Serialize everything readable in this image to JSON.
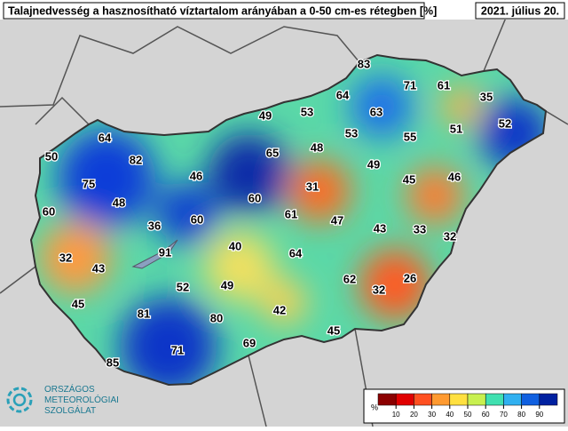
{
  "header": {
    "title": "Talajnedvesség a hasznosítható víztartalom arányában a 0-50 cm-es rétegben [%]",
    "date": "2021. július 20."
  },
  "stations": [
    83,
    71,
    61,
    35,
    64,
    53,
    63,
    49,
    51,
    52,
    53,
    55,
    64,
    65,
    48,
    82,
    49,
    50,
    46,
    45,
    46,
    75,
    31,
    60,
    48,
    60,
    36,
    60,
    61,
    47,
    43,
    33,
    32,
    40,
    91,
    32,
    43,
    64,
    52,
    49,
    62,
    32,
    26,
    45,
    81,
    42,
    80,
    45,
    69,
    71,
    85
  ],
  "legend": {
    "unit": "%",
    "ticks": [
      10,
      20,
      30,
      40,
      50,
      60,
      70,
      80,
      90
    ],
    "colors": [
      "#8b0000",
      "#e00000",
      "#ff5020",
      "#ff9a30",
      "#ffe040",
      "#c8f050",
      "#40e0b0",
      "#30b0f0",
      "#1060e0",
      "#0020a0"
    ]
  },
  "logo": [
    "ORSZÁGOS",
    "METEOROLÓGIAI",
    "SZOLGÁLAT"
  ]
}
